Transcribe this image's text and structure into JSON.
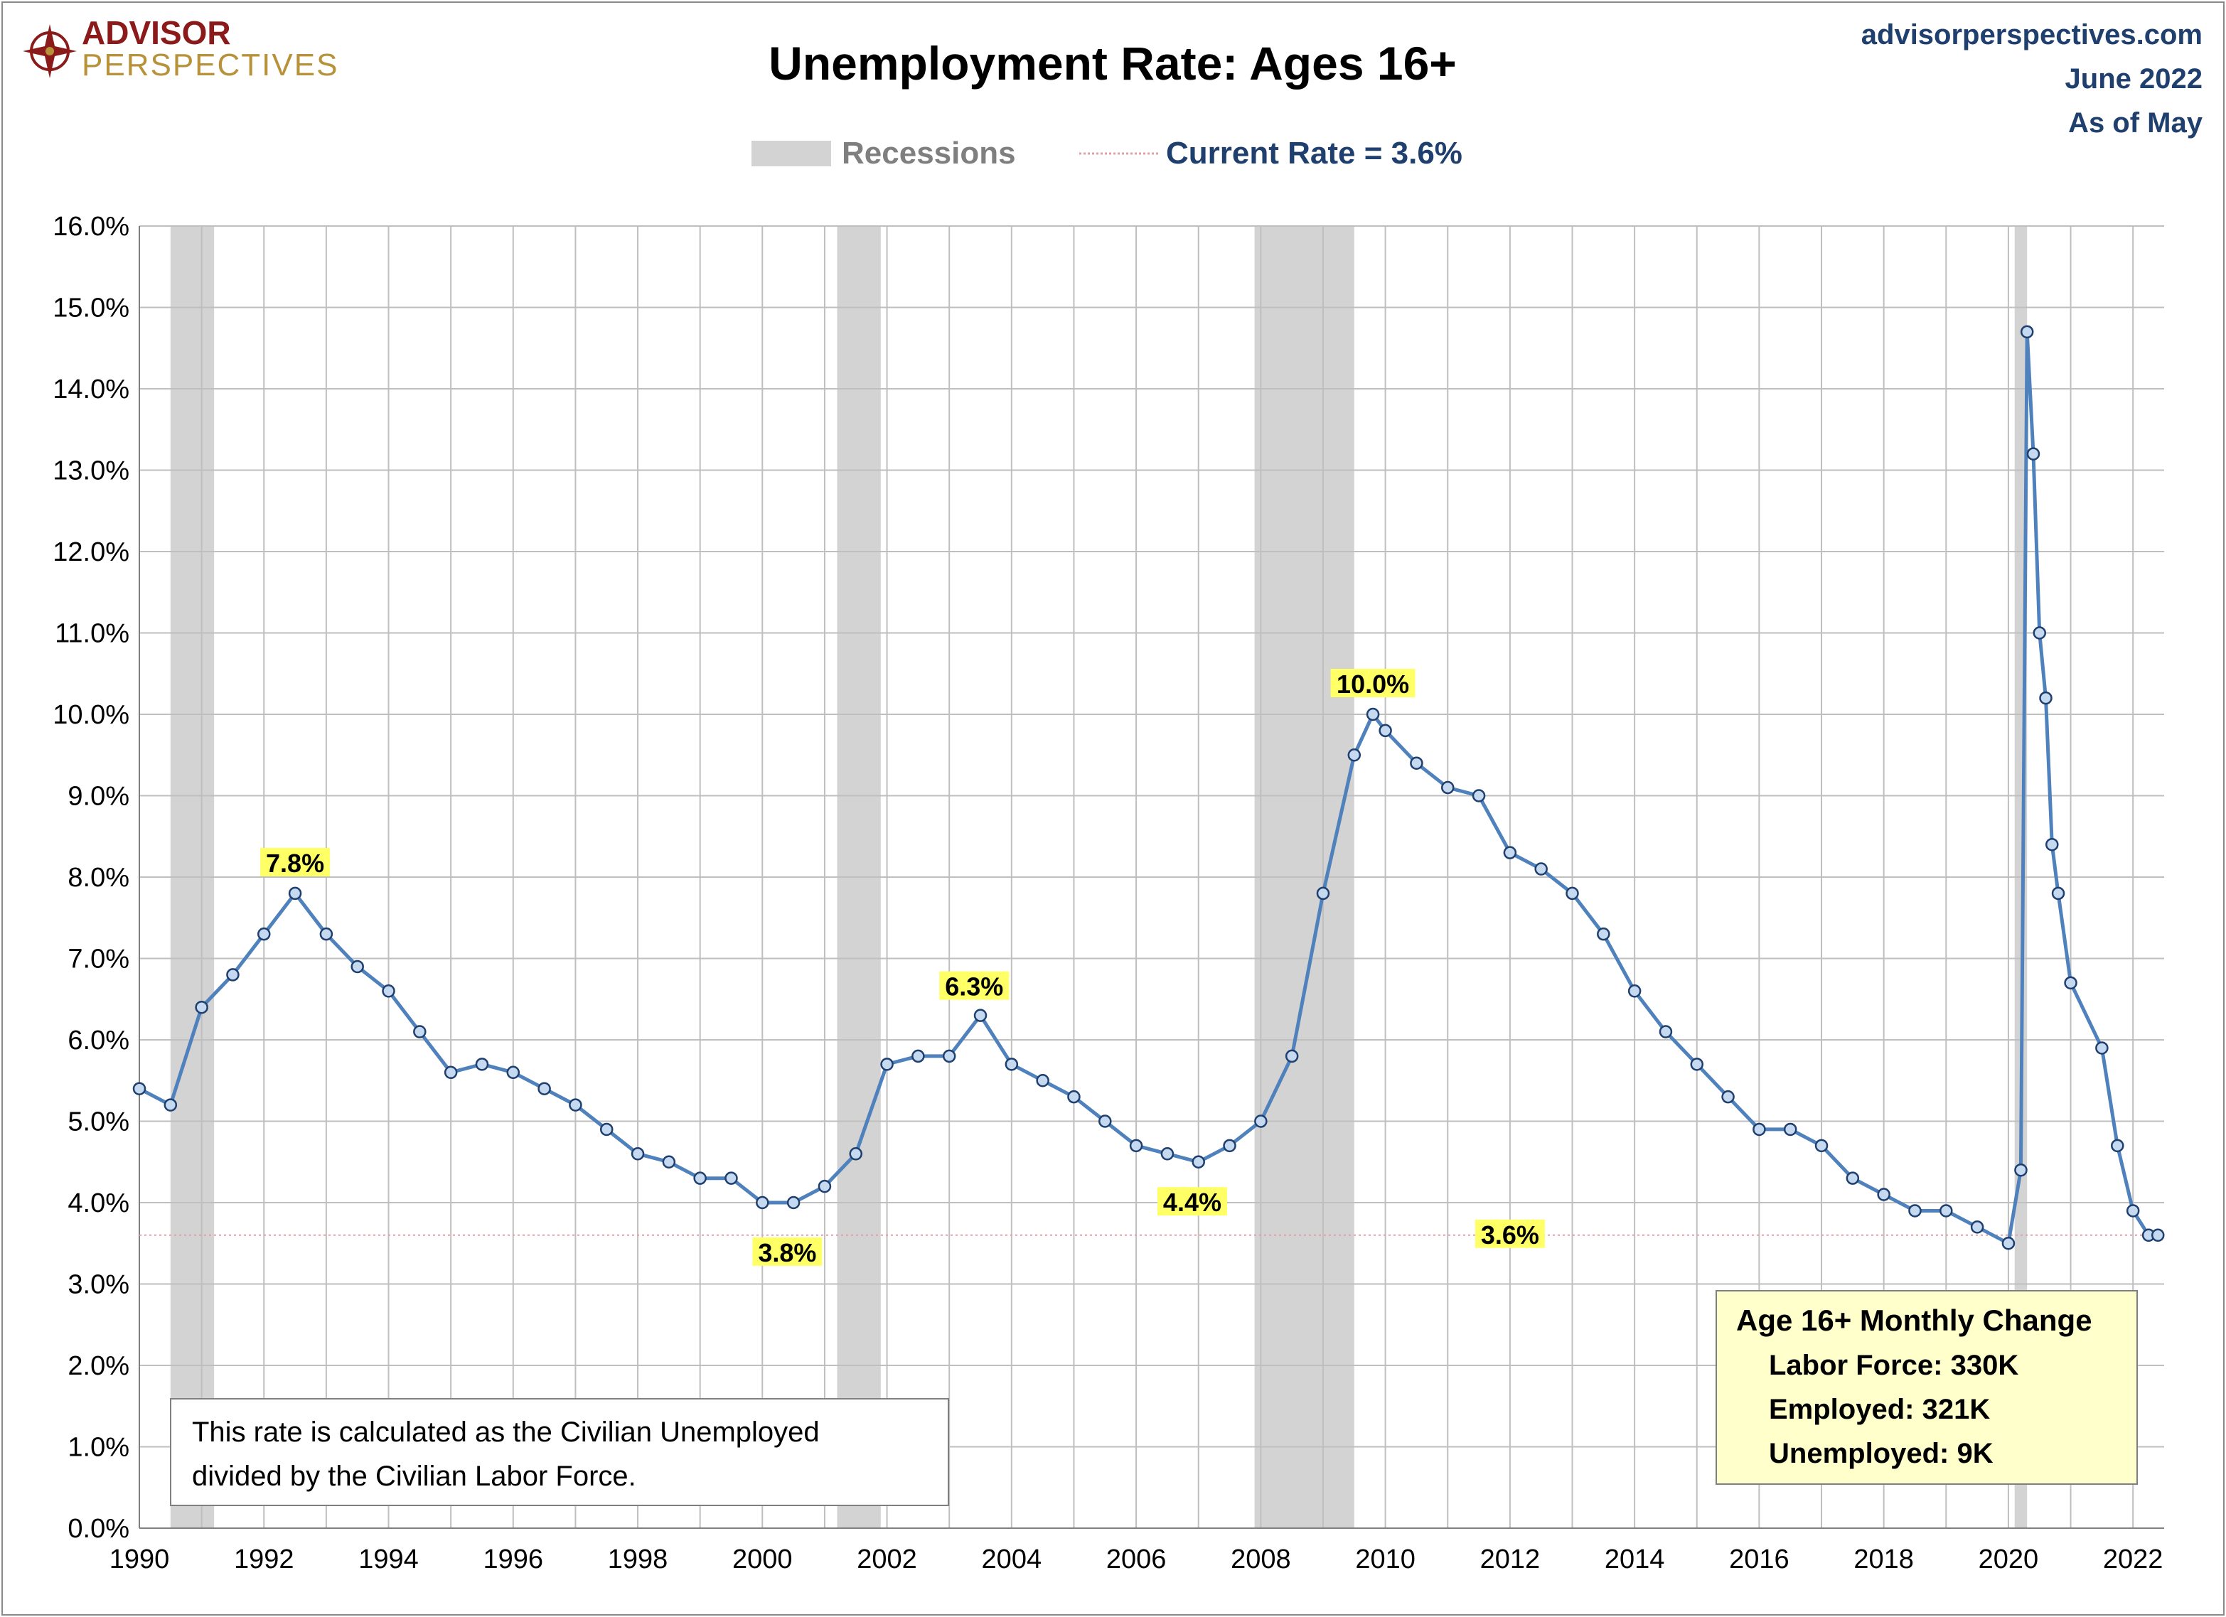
{
  "header": {
    "logo_line1": "ADVISOR",
    "logo_line2": "PERSPECTIVES",
    "title": "Unemployment Rate: Ages 16+",
    "source_url": "advisorperspectives.com",
    "date": "June 2022",
    "as_of": "As of May"
  },
  "legend": {
    "recessions": "Recessions",
    "current_rate": "Current Rate = 3.6%"
  },
  "note": {
    "line1": "This rate is calculated as the Civilian Unemployed",
    "line2": "divided by the Civilian Labor Force."
  },
  "summary_box": {
    "title": "Age 16+ Monthly Change",
    "labor_force": "Labor Force:  330K",
    "employed": "Employed:  321K",
    "unemployed": "Unemployed:  9K"
  },
  "colors": {
    "line": "#4f81bd",
    "marker_fill": "#c5d9f1",
    "marker_stroke": "#1f3f6e",
    "recession": "#d3d3d3",
    "current_line": "#e3a0a8",
    "highlight": "#ffff66",
    "box_fill": "#ffffcc"
  },
  "chart_data": {
    "type": "line",
    "title": "Unemployment Rate: Ages 16+",
    "xlabel": "",
    "ylabel": "",
    "xlim": [
      1990,
      2022.5
    ],
    "ylim": [
      0,
      16
    ],
    "grid": true,
    "x_ticks": [
      "1990",
      "1992",
      "1994",
      "1996",
      "1998",
      "2000",
      "2002",
      "2004",
      "2006",
      "2008",
      "2010",
      "2012",
      "2014",
      "2016",
      "2018",
      "2020",
      "2022"
    ],
    "y_ticks": [
      "0.0%",
      "1.0%",
      "2.0%",
      "3.0%",
      "4.0%",
      "5.0%",
      "6.0%",
      "7.0%",
      "8.0%",
      "9.0%",
      "10.0%",
      "11.0%",
      "12.0%",
      "13.0%",
      "14.0%",
      "15.0%",
      "16.0%"
    ],
    "current_rate": 3.6,
    "recessions": [
      [
        1990.5,
        1991.2
      ],
      [
        2001.2,
        2001.9
      ],
      [
        2007.9,
        2009.5
      ],
      [
        2020.1,
        2020.3
      ]
    ],
    "series": [
      {
        "name": "Unemployment Rate",
        "points": [
          [
            1990.0,
            5.4
          ],
          [
            1990.5,
            5.2
          ],
          [
            1991.0,
            6.4
          ],
          [
            1991.5,
            6.8
          ],
          [
            1992.0,
            7.3
          ],
          [
            1992.5,
            7.8
          ],
          [
            1993.0,
            7.3
          ],
          [
            1993.5,
            6.9
          ],
          [
            1994.0,
            6.6
          ],
          [
            1994.5,
            6.1
          ],
          [
            1995.0,
            5.6
          ],
          [
            1995.5,
            5.7
          ],
          [
            1996.0,
            5.6
          ],
          [
            1996.5,
            5.4
          ],
          [
            1997.0,
            5.2
          ],
          [
            1997.5,
            4.9
          ],
          [
            1998.0,
            4.6
          ],
          [
            1998.5,
            4.5
          ],
          [
            1999.0,
            4.3
          ],
          [
            1999.5,
            4.3
          ],
          [
            2000.0,
            4.0
          ],
          [
            2000.5,
            4.0
          ],
          [
            2001.0,
            4.2
          ],
          [
            2001.5,
            4.6
          ],
          [
            2002.0,
            5.7
          ],
          [
            2002.5,
            5.8
          ],
          [
            2003.0,
            5.8
          ],
          [
            2003.5,
            6.3
          ],
          [
            2004.0,
            5.7
          ],
          [
            2004.5,
            5.5
          ],
          [
            2005.0,
            5.3
          ],
          [
            2005.5,
            5.0
          ],
          [
            2006.0,
            4.7
          ],
          [
            2006.5,
            4.6
          ],
          [
            2007.0,
            4.5
          ],
          [
            2007.5,
            4.7
          ],
          [
            2008.0,
            5.0
          ],
          [
            2008.5,
            5.8
          ],
          [
            2009.0,
            7.8
          ],
          [
            2009.5,
            9.5
          ],
          [
            2009.8,
            10.0
          ],
          [
            2010.0,
            9.8
          ],
          [
            2010.5,
            9.4
          ],
          [
            2011.0,
            9.1
          ],
          [
            2011.5,
            9.0
          ],
          [
            2012.0,
            8.3
          ],
          [
            2012.5,
            8.1
          ],
          [
            2013.0,
            7.8
          ],
          [
            2013.5,
            7.3
          ],
          [
            2014.0,
            6.6
          ],
          [
            2014.5,
            6.1
          ],
          [
            2015.0,
            5.7
          ],
          [
            2015.5,
            5.3
          ],
          [
            2016.0,
            4.9
          ],
          [
            2016.5,
            4.9
          ],
          [
            2017.0,
            4.7
          ],
          [
            2017.5,
            4.3
          ],
          [
            2018.0,
            4.1
          ],
          [
            2018.5,
            3.9
          ],
          [
            2019.0,
            3.9
          ],
          [
            2019.5,
            3.7
          ],
          [
            2020.0,
            3.5
          ],
          [
            2020.2,
            4.4
          ],
          [
            2020.3,
            14.7
          ],
          [
            2020.4,
            13.2
          ],
          [
            2020.5,
            11.0
          ],
          [
            2020.6,
            10.2
          ],
          [
            2020.7,
            8.4
          ],
          [
            2020.8,
            7.8
          ],
          [
            2021.0,
            6.7
          ],
          [
            2021.5,
            5.9
          ],
          [
            2021.75,
            4.7
          ],
          [
            2022.0,
            3.9
          ],
          [
            2022.25,
            3.6
          ],
          [
            2022.4,
            3.6
          ]
        ]
      }
    ],
    "annotations": [
      {
        "label": "7.8%",
        "x": 1992.5,
        "y": 7.8
      },
      {
        "label": "3.8%",
        "x": 2000.4,
        "y": 3.8
      },
      {
        "label": "6.3%",
        "x": 2003.4,
        "y": 6.3
      },
      {
        "label": "4.4%",
        "x": 2006.9,
        "y": 4.4
      },
      {
        "label": "10.0%",
        "x": 2009.8,
        "y": 10.0
      },
      {
        "label": "3.6%",
        "x": 2012.0,
        "y": 3.6
      }
    ]
  }
}
